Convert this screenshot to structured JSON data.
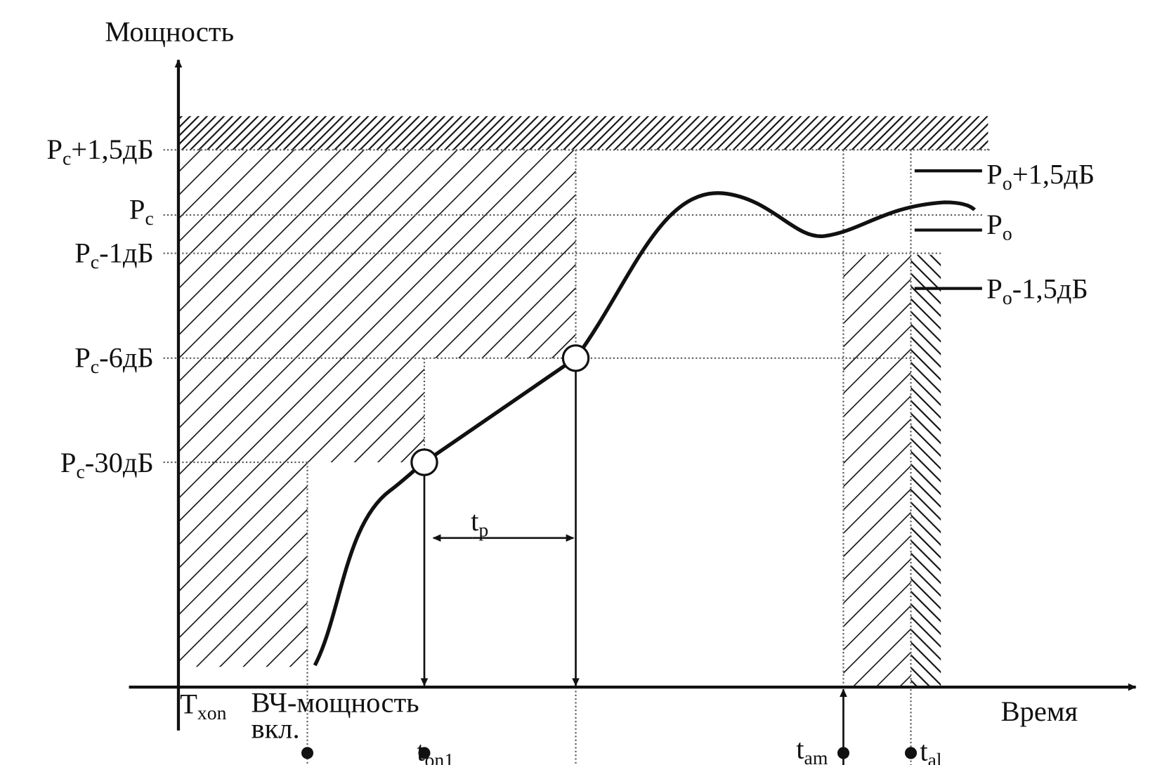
{
  "axes": {
    "y_label": "Мощность",
    "x_label": "Время"
  },
  "levels": [
    {
      "base": "P",
      "sub": "c",
      "rest": "+1,5дБ"
    },
    {
      "base": "P",
      "sub": "c"
    },
    {
      "base": "P",
      "sub": "c",
      "rest": "-1дБ"
    },
    {
      "base": "P",
      "sub": "c",
      "rest": "-6дБ"
    },
    {
      "base": "P",
      "sub": "c",
      "rest": "-30дБ"
    }
  ],
  "output_levels": [
    {
      "base": "P",
      "sub": "o",
      "rest": "+1,5дБ"
    },
    {
      "base": "P",
      "sub": "o"
    },
    {
      "base": "P",
      "sub": "o",
      "rest": "-1,5дБ"
    }
  ],
  "time_marks": [
    {
      "base": "T",
      "sub": "xon"
    },
    {
      "base": "t",
      "sub": "on1"
    },
    {
      "base": "t",
      "sub": "am"
    },
    {
      "base": "t",
      "sub": "al"
    },
    {
      "base": "t",
      "sub": "p"
    }
  ],
  "rf_on": {
    "line1": "ВЧ-мощность",
    "line2": "вкл."
  }
}
